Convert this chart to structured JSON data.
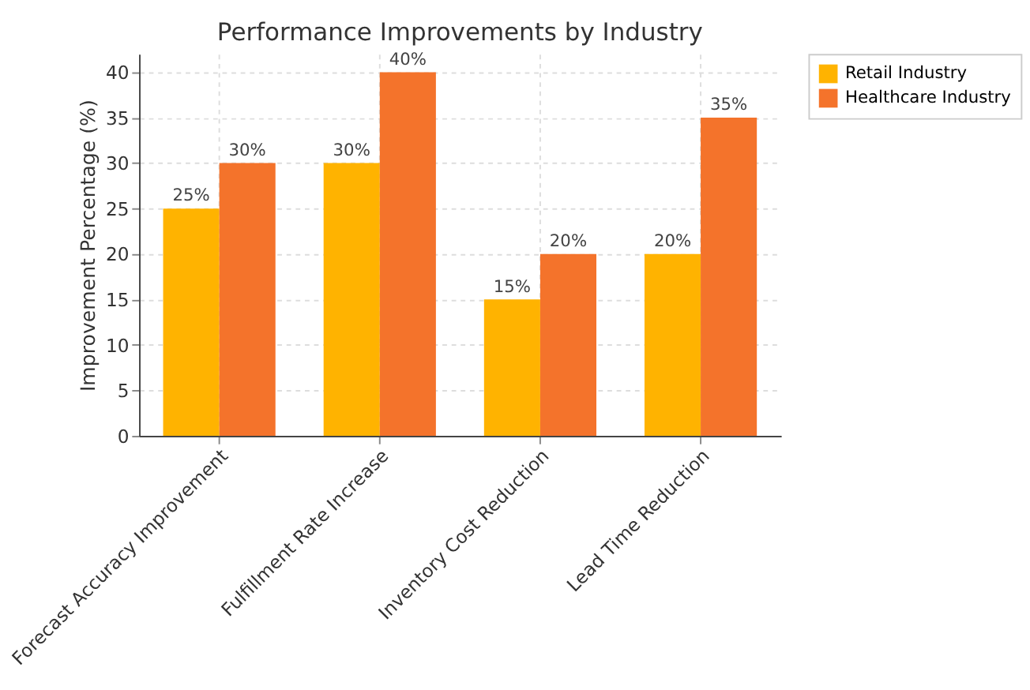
{
  "chart_data": {
    "type": "bar",
    "title": "Performance Improvements by Industry",
    "ylabel": "Improvement Percentage (%)",
    "categories": [
      "Forecast Accuracy Improvement",
      "Fulfillment Rate Increase",
      "Inventory Cost Reduction",
      "Lead Time Reduction"
    ],
    "series": [
      {
        "name": "Retail Industry",
        "color": "#ffb300",
        "values": [
          25,
          30,
          15,
          20
        ],
        "value_labels": [
          "25%",
          "30%",
          "15%",
          "20%"
        ]
      },
      {
        "name": "Healthcare Industry",
        "color": "#f4732b",
        "values": [
          30,
          40,
          20,
          35
        ],
        "value_labels": [
          "30%",
          "40%",
          "20%",
          "35%"
        ]
      }
    ],
    "ylim": [
      0,
      42
    ],
    "yticks": [
      0,
      5,
      10,
      15,
      20,
      25,
      30,
      35,
      40
    ],
    "grid": true,
    "legend": "top right"
  }
}
